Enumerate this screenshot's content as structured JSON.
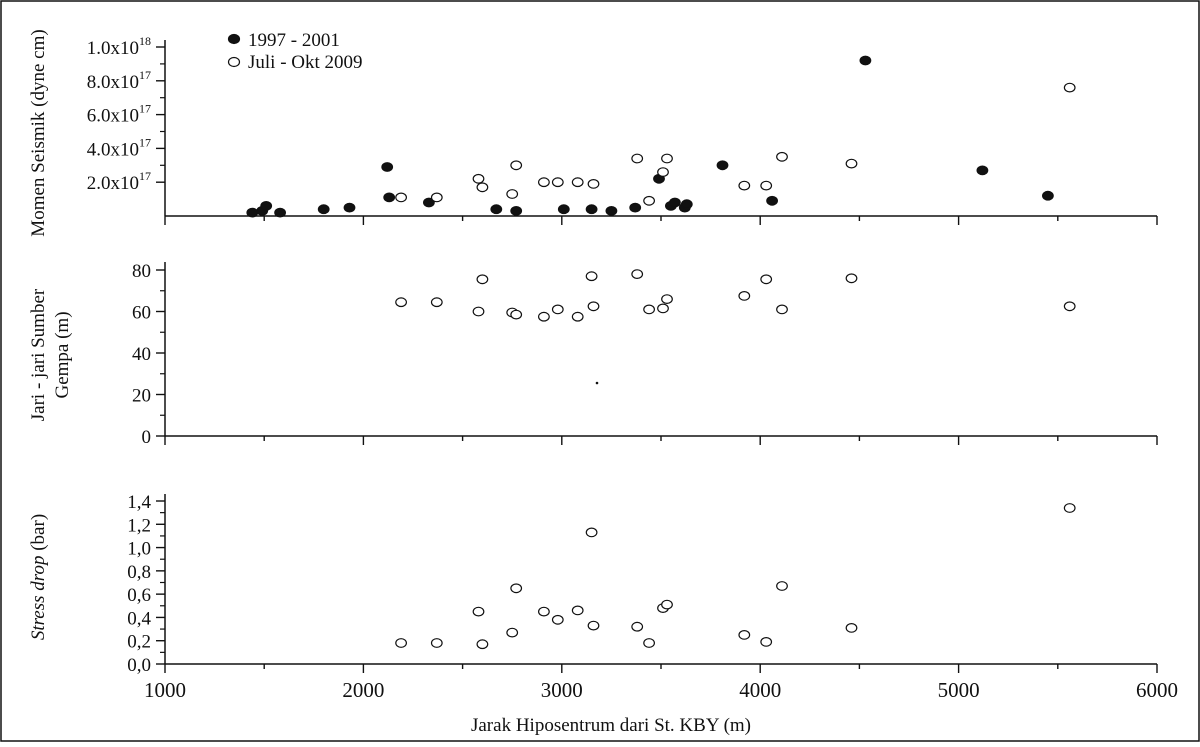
{
  "chart_data": {
    "type": "scatter",
    "xlabel": "Jarak Hiposentrum dari St. KBY (m)",
    "xlim": [
      1000,
      6000
    ],
    "xticks": [
      "1000",
      "2000",
      "3000",
      "4000",
      "5000",
      "6000"
    ],
    "legend": {
      "placement": "top-left",
      "entries": [
        {
          "name": "1997 - 2001",
          "marker": "filled"
        },
        {
          "name": "Juli - Okt 2009",
          "marker": "open"
        }
      ]
    },
    "panels": [
      {
        "id": "moment",
        "ylabel": "Momen Seismik (dyne cm)",
        "ylim": [
          0,
          1e+18
        ],
        "ytick_values": [
          2e+17,
          4e+17,
          6e+17,
          8e+17,
          1e+18
        ],
        "yticks": [
          {
            "mant": "2.0x10",
            "exp": "17"
          },
          {
            "mant": "4.0x10",
            "exp": "17"
          },
          {
            "mant": "6.0x10",
            "exp": "17"
          },
          {
            "mant": "8.0x10",
            "exp": "17"
          },
          {
            "mant": "1.0x10",
            "exp": "18"
          }
        ],
        "series": [
          {
            "name": "1997 - 2001",
            "marker": "filled",
            "x": [
              1440,
              1490,
              1510,
              1580,
              1800,
              1930,
              2120,
              2130,
              2330,
              2670,
              2770,
              3010,
              3150,
              3250,
              3370,
              3490,
              3550,
              3570,
              3620,
              3630,
              3810,
              4060,
              4530,
              5120,
              5450
            ],
            "y": [
              2e+16,
              3e+16,
              6e+16,
              2e+16,
              4e+16,
              5e+16,
              2.9e+17,
              1.1e+17,
              8e+16,
              4e+16,
              3e+16,
              4e+16,
              4e+16,
              3e+16,
              5e+16,
              2.2e+17,
              6e+16,
              8e+16,
              5e+16,
              7e+16,
              3e+17,
              9e+16,
              9.2e+17,
              2.7e+17,
              1.2e+17
            ]
          },
          {
            "name": "Juli - Okt 2009",
            "marker": "open",
            "x": [
              2190,
              2370,
              2580,
              2600,
              2750,
              2770,
              2910,
              2980,
              3080,
              3160,
              3380,
              3440,
              3510,
              3530,
              3920,
              4030,
              4110,
              4460,
              5560
            ],
            "y": [
              1.1e+17,
              1.1e+17,
              2.2e+17,
              1.7e+17,
              1.3e+17,
              3e+17,
              2e+17,
              2e+17,
              2e+17,
              1.9e+17,
              3.4e+17,
              9e+16,
              2.6e+17,
              3.4e+17,
              1.8e+17,
              1.8e+17,
              3.5e+17,
              3.1e+17,
              7.6e+17
            ]
          }
        ]
      },
      {
        "id": "radius",
        "ylabel_lines": [
          "Jari - jari Sumber",
          "Gempa (m)"
        ],
        "ylim": [
          0,
          80
        ],
        "ytick_values": [
          0,
          20,
          40,
          60,
          80
        ],
        "yticks": [
          "0",
          "20",
          "40",
          "60",
          "80"
        ],
        "series": [
          {
            "name": "Juli - Okt 2009",
            "marker": "open",
            "x": [
              2190,
              2370,
              2580,
              2600,
              2750,
              2770,
              2910,
              2980,
              3080,
              3150,
              3160,
              3380,
              3440,
              3510,
              3530,
              3920,
              4030,
              4110,
              4460,
              5560
            ],
            "y": [
              64.5,
              64.5,
              60,
              75.5,
              59.5,
              58.5,
              57.5,
              61,
              57.5,
              77,
              62.5,
              78,
              61,
              61.5,
              66,
              67.5,
              75.5,
              61,
              76,
              62.5
            ]
          }
        ]
      },
      {
        "id": "stress",
        "ylabel_italic": "Stress drop",
        "ylabel_unit": " (bar)",
        "ylim": [
          0,
          1.4
        ],
        "ytick_values": [
          0,
          0.2,
          0.4,
          0.6,
          0.8,
          1.0,
          1.2,
          1.4
        ],
        "yticks": [
          "0,0",
          "0,2",
          "0,4",
          "0,6",
          "0,8",
          "1,0",
          "1,2",
          "1,4"
        ],
        "series": [
          {
            "name": "Juli - Okt 2009",
            "marker": "open",
            "x": [
              2190,
              2370,
              2580,
              2600,
              2750,
              2770,
              2910,
              2980,
              3080,
              3150,
              3160,
              3380,
              3440,
              3510,
              3530,
              3920,
              4030,
              4110,
              4460,
              5560
            ],
            "y": [
              0.18,
              0.18,
              0.45,
              0.17,
              0.27,
              0.65,
              0.45,
              0.38,
              0.46,
              1.13,
              0.33,
              0.32,
              0.18,
              0.48,
              0.51,
              0.25,
              0.19,
              0.67,
              0.31,
              1.34
            ]
          }
        ]
      }
    ]
  }
}
